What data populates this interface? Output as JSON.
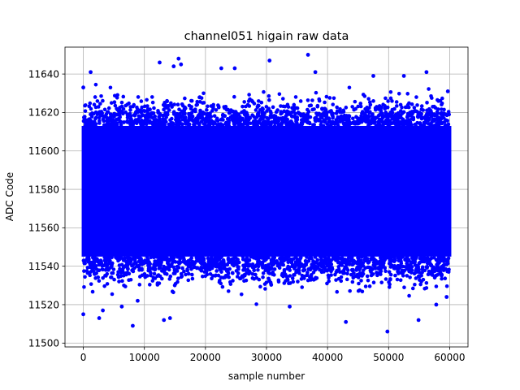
{
  "chart_data": {
    "type": "scatter",
    "title": "channel051 higain raw data",
    "xlabel": "sample number",
    "ylabel": "ADC Code",
    "xlim": [
      -3000,
      63000
    ],
    "ylim": [
      11498,
      11654
    ],
    "xticks": [
      0,
      10000,
      20000,
      30000,
      40000,
      50000,
      60000
    ],
    "yticks": [
      11500,
      11520,
      11540,
      11560,
      11580,
      11600,
      11620,
      11640
    ],
    "grid": true,
    "marker_color": "#0000ff",
    "series": [
      {
        "n_samples": 60000,
        "dense_band": [
          11545,
          11613
        ],
        "outliers": [
          {
            "x": 0,
            "y": 11515
          },
          {
            "x": 1200,
            "y": 11641
          },
          {
            "x": 2600,
            "y": 11513
          },
          {
            "x": 3200,
            "y": 11517
          },
          {
            "x": 6300,
            "y": 11519
          },
          {
            "x": 8100,
            "y": 11509
          },
          {
            "x": 8900,
            "y": 11522
          },
          {
            "x": 12500,
            "y": 11646
          },
          {
            "x": 13200,
            "y": 11512
          },
          {
            "x": 14200,
            "y": 11513
          },
          {
            "x": 14800,
            "y": 11644
          },
          {
            "x": 15600,
            "y": 11648
          },
          {
            "x": 16000,
            "y": 11645
          },
          {
            "x": 22600,
            "y": 11643
          },
          {
            "x": 24800,
            "y": 11643
          },
          {
            "x": 30500,
            "y": 11647
          },
          {
            "x": 33800,
            "y": 11519
          },
          {
            "x": 36800,
            "y": 11650
          },
          {
            "x": 38000,
            "y": 11641
          },
          {
            "x": 43000,
            "y": 11511
          },
          {
            "x": 47500,
            "y": 11639
          },
          {
            "x": 49800,
            "y": 11506
          },
          {
            "x": 52500,
            "y": 11639
          },
          {
            "x": 54900,
            "y": 11512
          },
          {
            "x": 56200,
            "y": 11641
          },
          {
            "x": 57800,
            "y": 11520
          },
          {
            "x": 59500,
            "y": 11524
          },
          {
            "x": 0,
            "y": 11633
          },
          {
            "x": 59700,
            "y": 11631
          }
        ]
      }
    ]
  }
}
